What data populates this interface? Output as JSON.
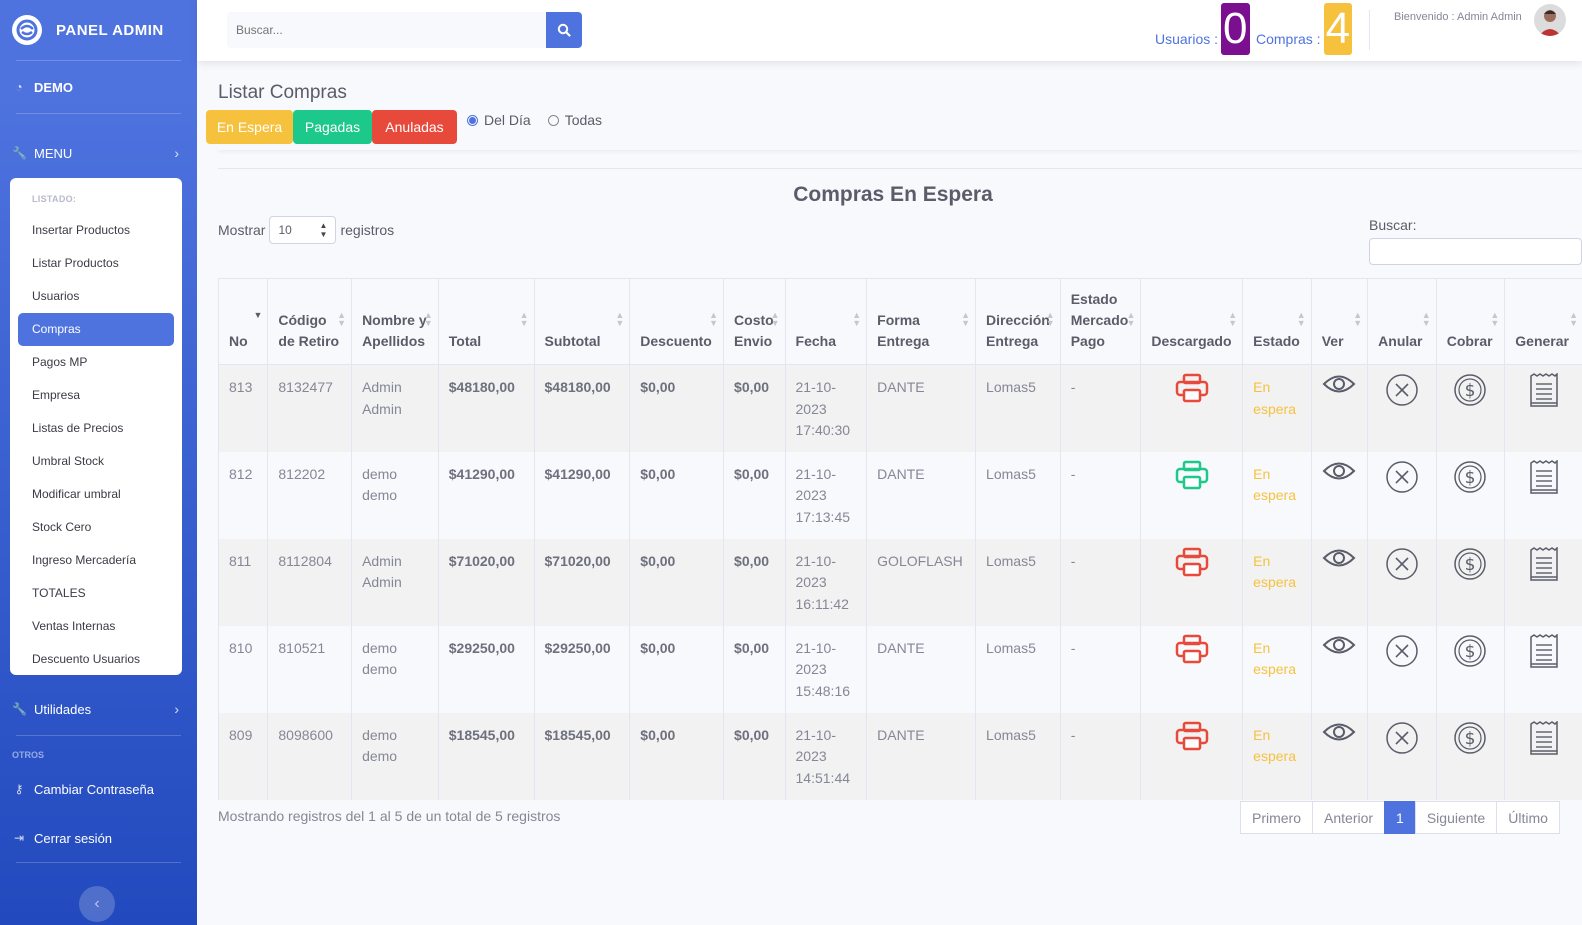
{
  "brand": {
    "title": "PANEL ADMIN"
  },
  "sidebar": {
    "demo": "DEMO",
    "menu": "MENU",
    "listado_header": "LISTADO:",
    "items": [
      "Insertar Productos",
      "Listar Productos",
      "Usuarios",
      "Compras",
      "Pagos MP",
      "Empresa",
      "Listas de Precios",
      "Umbral Stock",
      "Modificar umbral",
      "Stock Cero",
      "Ingreso Mercadería",
      "TOTALES",
      "Ventas Internas",
      "Descuento Usuarios"
    ],
    "active": "Compras",
    "utilidades": "Utilidades",
    "otros": "OTROS",
    "cambiar": "Cambiar Contraseña",
    "cerrar": "Cerrar sesión"
  },
  "topbar": {
    "search_placeholder": "Buscar...",
    "usuarios_label": "Usuarios :",
    "usuarios_count": "0",
    "compras_label": "Compras :",
    "compras_count": "4",
    "welcome": "Bienvenido : Admin Admin"
  },
  "colors": {
    "primary": "#4e73df",
    "warning": "#f6c23e",
    "success": "#1cc88a",
    "danger": "#e74a3b",
    "purple": "#7a0f8f"
  },
  "page": {
    "title": "Listar Compras",
    "filters": [
      "En Espera",
      "Pagadas",
      "Anuladas"
    ],
    "radio_day": "Del Día",
    "radio_all": "Todas",
    "table_title": "Compras En Espera",
    "mostrar": "Mostrar",
    "mostrar_value": "10",
    "registros": "registros",
    "buscar": "Buscar:",
    "footer": "Mostrando registros del 1 al 5 de un total de 5 registros",
    "pager": [
      "Primero",
      "Anterior",
      "1",
      "Siguiente",
      "Último"
    ]
  },
  "table": {
    "headers": [
      "No",
      "Código de Retiro",
      "Nombre y Apellidos",
      "Total",
      "Subtotal",
      "Descuento",
      "Costo Envio",
      "Fecha",
      "Forma Entrega",
      "Dirección Entrega",
      "Estado Mercado Pago",
      "Descargado",
      "Estado",
      "Ver",
      "Anular",
      "Cobrar",
      "Generar"
    ],
    "rows": [
      {
        "no": "813",
        "codigo": "8132477",
        "nombre": "Admin Admin",
        "total": "$48180,00",
        "subtotal": "$48180,00",
        "descuento": "$0,00",
        "envio": "$0,00",
        "fecha": "21-10-2023 17:40:30",
        "forma": "DANTE",
        "direccion": "Lomas5",
        "mp": "-",
        "descargado": "red",
        "estado": "En espera"
      },
      {
        "no": "812",
        "codigo": "812202",
        "nombre": "demo demo",
        "total": "$41290,00",
        "subtotal": "$41290,00",
        "descuento": "$0,00",
        "envio": "$0,00",
        "fecha": "21-10-2023 17:13:45",
        "forma": "DANTE",
        "direccion": "Lomas5",
        "mp": "-",
        "descargado": "green",
        "estado": "En espera"
      },
      {
        "no": "811",
        "codigo": "8112804",
        "nombre": "Admin Admin",
        "total": "$71020,00",
        "subtotal": "$71020,00",
        "descuento": "$0,00",
        "envio": "$0,00",
        "fecha": "21-10-2023 16:11:42",
        "forma": "GOLOFLASH",
        "direccion": "Lomas5",
        "mp": "-",
        "descargado": "red",
        "estado": "En espera"
      },
      {
        "no": "810",
        "codigo": "810521",
        "nombre": "demo demo",
        "total": "$29250,00",
        "subtotal": "$29250,00",
        "descuento": "$0,00",
        "envio": "$0,00",
        "fecha": "21-10-2023 15:48:16",
        "forma": "DANTE",
        "direccion": "Lomas5",
        "mp": "-",
        "descargado": "red",
        "estado": "En espera"
      },
      {
        "no": "809",
        "codigo": "8098600",
        "nombre": "demo demo",
        "total": "$18545,00",
        "subtotal": "$18545,00",
        "descuento": "$0,00",
        "envio": "$0,00",
        "fecha": "21-10-2023 14:51:44",
        "forma": "DANTE",
        "direccion": "Lomas5",
        "mp": "-",
        "descargado": "red",
        "estado": "En espera"
      }
    ]
  }
}
